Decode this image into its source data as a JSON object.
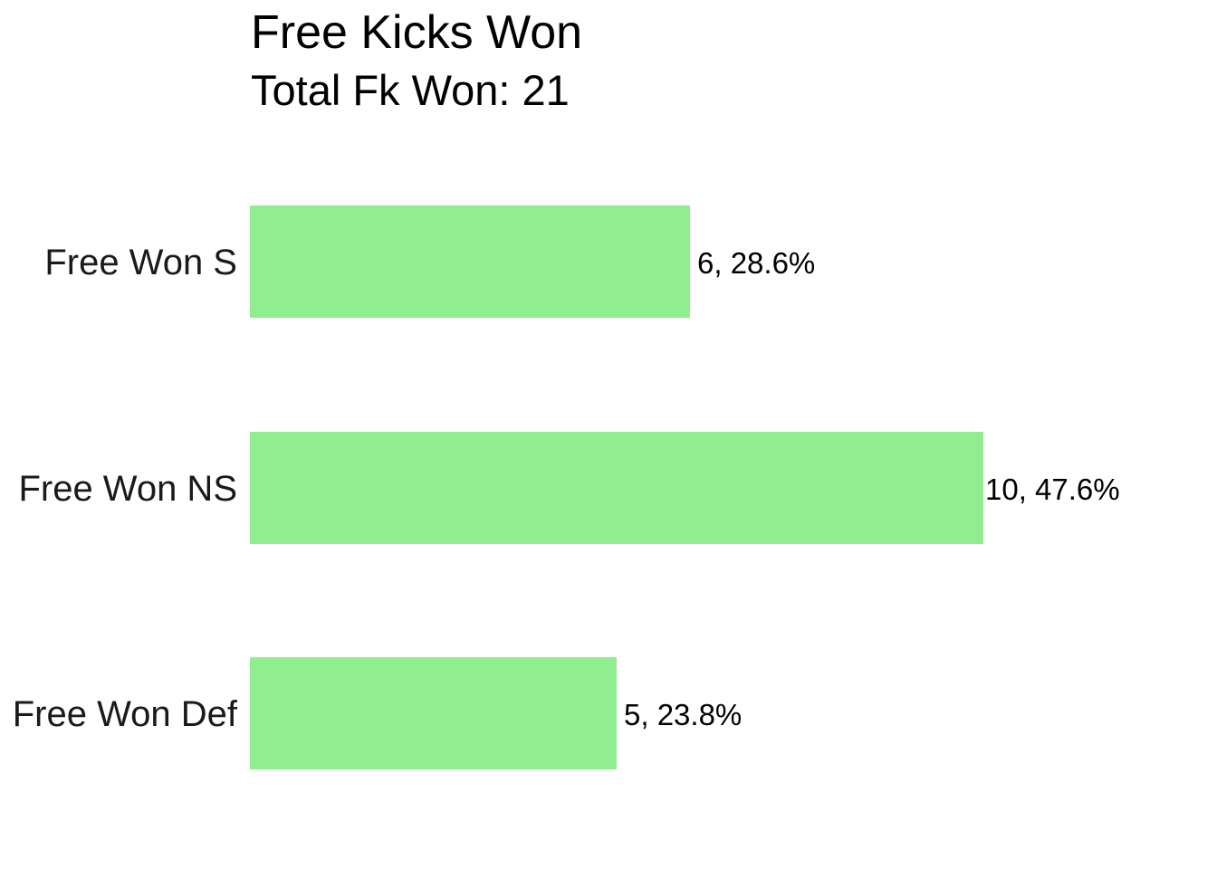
{
  "chart_data": {
    "type": "bar",
    "orientation": "horizontal",
    "title": "Free Kicks Won",
    "subtitle": "Total Fk Won: 21",
    "categories": [
      "Free Won S",
      "Free Won NS",
      "Free Won Def"
    ],
    "values": [
      6,
      10,
      5
    ],
    "data_labels": [
      "6, 28.6%",
      "10, 47.6%",
      "5, 23.8%"
    ],
    "xlim": [
      0,
      10
    ],
    "grid": false,
    "bar_color": "#90EE90",
    "xlabel": "",
    "ylabel": ""
  }
}
